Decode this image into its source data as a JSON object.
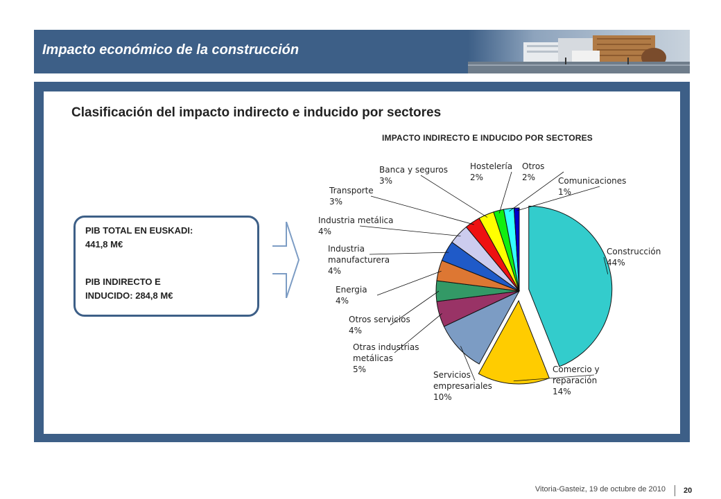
{
  "header": {
    "title": "Impacto económico de la construcción",
    "band_color": "#3d5f87"
  },
  "main": {
    "section_title": "Clasificación del impacto indirecto e inducido por sectores",
    "info_box": {
      "line1": "PIB TOTAL EN EUSKADI:",
      "line2": "441,8 M€",
      "line3": "PIB INDIRECTO E",
      "line4": "INDUCIDO:   284,8 M€"
    }
  },
  "chart_data": {
    "type": "pie",
    "title": "IMPACTO INDIRECTO E INDUCIDO POR SECTORES",
    "slices": [
      {
        "name": "Construcción",
        "pct_label": "44%",
        "value": 44,
        "color": "#33cccc",
        "exploded": true
      },
      {
        "name": "Comercio y reparación",
        "pct_label": "14%",
        "value": 14,
        "color": "#ffcc00",
        "exploded": true
      },
      {
        "name": "Servicios empresariales",
        "pct_label": "10%",
        "value": 10,
        "color": "#7c9cc4",
        "exploded": false
      },
      {
        "name": "Otras industrias metálicas",
        "pct_label": "5%",
        "value": 5,
        "color": "#993366",
        "exploded": false
      },
      {
        "name": "Otros servicios",
        "pct_label": "4%",
        "value": 4,
        "color": "#339966",
        "exploded": false
      },
      {
        "name": "Energia",
        "pct_label": "4%",
        "value": 4,
        "color": "#dd7733",
        "exploded": false
      },
      {
        "name": "Industria manufacturera",
        "pct_label": "4%",
        "value": 4,
        "color": "#1f5ac8",
        "exploded": false
      },
      {
        "name": "Industria metálica",
        "pct_label": "4%",
        "value": 4,
        "color": "#ccccee",
        "exploded": false
      },
      {
        "name": "Transporte",
        "pct_label": "3%",
        "value": 3,
        "color": "#ee1111",
        "exploded": false
      },
      {
        "name": "Banca y seguros",
        "pct_label": "3%",
        "value": 3,
        "color": "#ffff00",
        "exploded": false
      },
      {
        "name": "Hostelería",
        "pct_label": "2%",
        "value": 2,
        "color": "#11ee11",
        "exploded": false
      },
      {
        "name": "Otros",
        "pct_label": "2%",
        "value": 2,
        "color": "#33ffff",
        "exploded": false
      },
      {
        "name": "Comunicaciones",
        "pct_label": "1%",
        "value": 1,
        "color": "#0000cc",
        "exploded": false
      }
    ]
  },
  "footer": {
    "location_date": "Vitoria-Gasteiz, 19 de octubre de 2010",
    "page_number": "20"
  }
}
